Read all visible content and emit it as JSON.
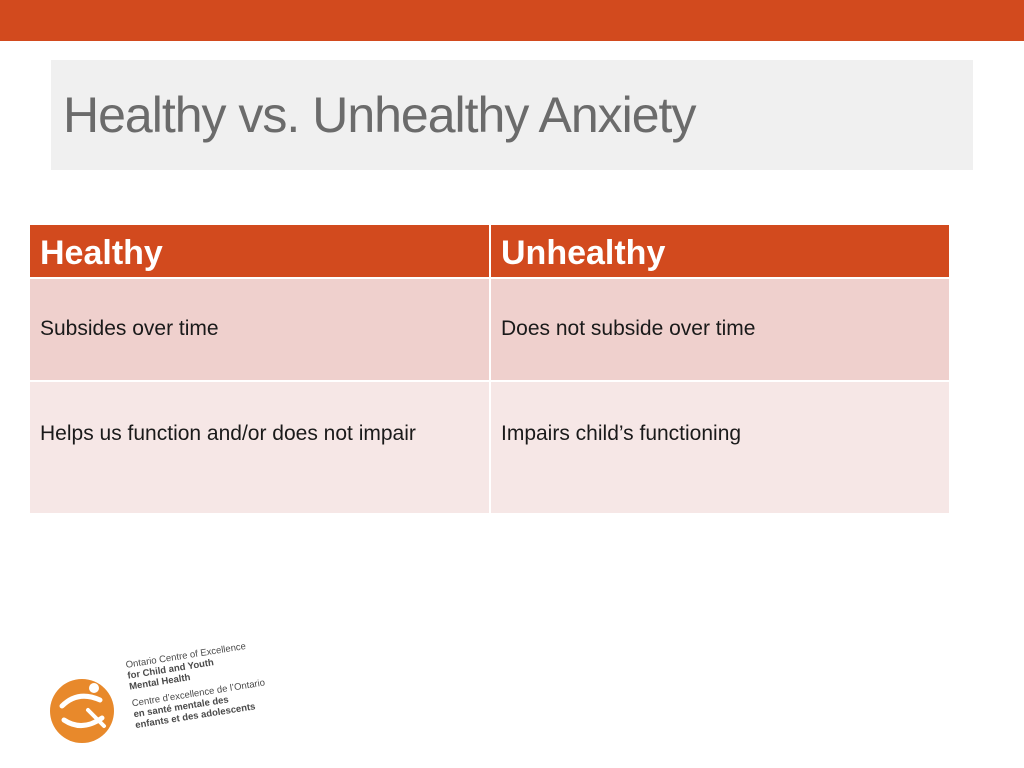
{
  "colors": {
    "accent": "#d24a1e",
    "row_odd": "#efd0cd",
    "row_even": "#f6e7e6",
    "title_bg": "#f0f0f0",
    "title_text": "#6b6b6b",
    "logo_orange": "#e8892b"
  },
  "slide": {
    "title": "Healthy vs. Unhealthy Anxiety"
  },
  "table": {
    "headers": [
      "Healthy",
      "Unhealthy"
    ],
    "rows": [
      [
        "Subsides over time",
        "Does not subside over time"
      ],
      [
        "Helps us function and/or does not impair",
        "Impairs child’s functioning"
      ]
    ]
  },
  "logo": {
    "icon": "ontario-centre-logo-icon",
    "lines": [
      "Ontario Centre of Excellence",
      "for Child and Youth",
      "Mental Health",
      "Centre d’excellence de l’Ontario",
      "en santé mentale des",
      "enfants et des adolescents"
    ]
  }
}
